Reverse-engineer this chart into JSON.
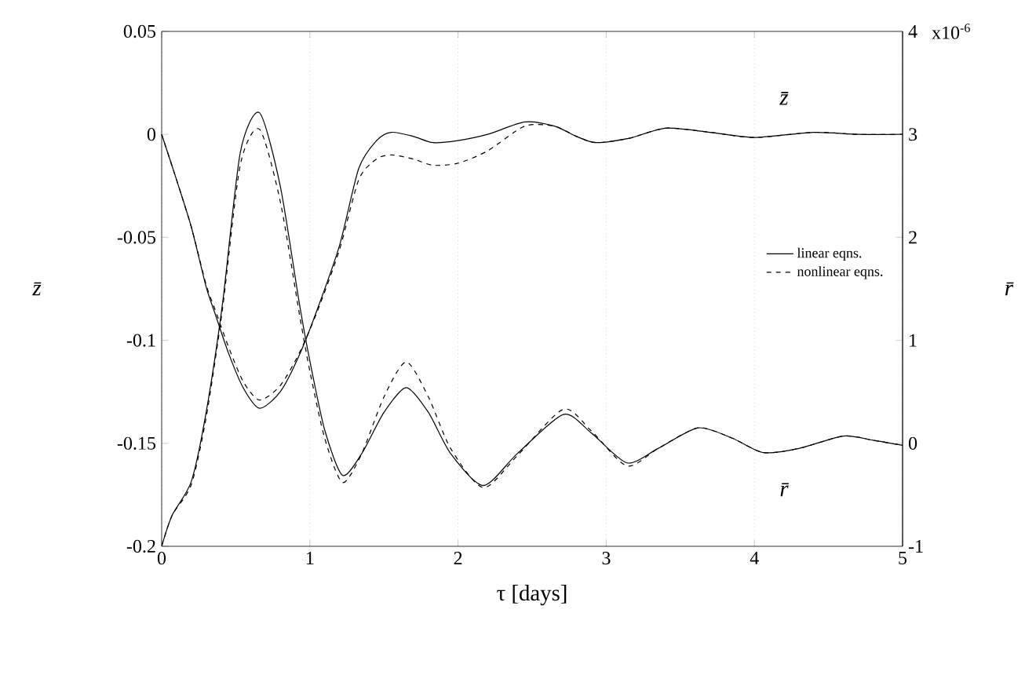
{
  "chart_data": {
    "type": "line",
    "xlabel": "τ [days]",
    "ylabel": "z̄",
    "y2label": "r̄",
    "xlim": [
      0,
      5
    ],
    "xticks": [
      0,
      1,
      2,
      3,
      4,
      5
    ],
    "ylim": [
      -0.2,
      0.05
    ],
    "yticks": [
      -0.2,
      -0.15,
      -0.1,
      -0.05,
      0,
      0.05
    ],
    "y2lim": [
      -1,
      4
    ],
    "y2ticks": [
      -1,
      0,
      1,
      2,
      3,
      4
    ],
    "legend": "right",
    "grid": "x",
    "marker": "none",
    "annotations": [
      "z̄",
      "r̄",
      "x10$^{-6}$"
    ],
    "series": [
      {
        "name": "linear eqns.",
        "color": "#000000",
        "line_style": "solid",
        "x": [
          0,
          0.1,
          0.2,
          0.3,
          0.36,
          0.45,
          0.55,
          0.66,
          0.8,
          0.93,
          1.05,
          1.2,
          1.33,
          1.45,
          1.55,
          1.7,
          1.83,
          2.0,
          2.2,
          2.45,
          2.65,
          2.8,
          2.93,
          3.15,
          3.4,
          3.7,
          4.0,
          4.4,
          4.7,
          5
        ],
        "values": [
          0,
          -0.022,
          -0.045,
          -0.074,
          -0.087,
          -0.106,
          -0.123,
          -0.133,
          -0.125,
          -0.107,
          -0.085,
          -0.054,
          -0.0165,
          -0.003,
          0.001,
          -0.001,
          -0.004,
          -0.003,
          0.0,
          0.006,
          0.004,
          -0.001,
          -0.004,
          -0.002,
          0.003,
          0.001,
          -0.0015,
          0.001,
          0.0,
          0.0
        ]
      },
      {
        "name": "nonlinear eqns.",
        "color": "#000000",
        "line_style": "dashed",
        "x": [
          0,
          0.1,
          0.2,
          0.3,
          0.36,
          0.45,
          0.55,
          0.66,
          0.8,
          0.93,
          1.05,
          1.2,
          1.33,
          1.45,
          1.55,
          1.7,
          1.83,
          2.0,
          2.2,
          2.45,
          2.65,
          2.8,
          2.93,
          3.15,
          3.4,
          3.7,
          4.0,
          4.4,
          4.7,
          5
        ],
        "values": [
          0,
          -0.022,
          -0.045,
          -0.073,
          -0.085,
          -0.103,
          -0.12,
          -0.129,
          -0.122,
          -0.106,
          -0.086,
          -0.056,
          -0.022,
          -0.012,
          -0.01,
          -0.012,
          -0.015,
          -0.014,
          -0.008,
          0.004,
          0.004,
          -0.001,
          -0.004,
          -0.002,
          0.003,
          0.001,
          -0.0015,
          0.001,
          0.0,
          0.0
        ]
      },
      {
        "color": "#000000",
        "line_style": "solid",
        "axis": "y2",
        "x": [
          0,
          0.07,
          0.2,
          0.3,
          0.41,
          0.53,
          0.66,
          0.8,
          0.93,
          1.0,
          1.1,
          1.22,
          1.35,
          1.5,
          1.65,
          1.8,
          1.95,
          2.17,
          2.4,
          2.71,
          2.9,
          3.14,
          3.35,
          3.62,
          3.85,
          4.06,
          4.3,
          4.6,
          4.8,
          5
        ],
        "values": [
          -1,
          -0.7,
          -0.37,
          0.3,
          1.35,
          2.82,
          3.21,
          2.5,
          1.35,
          0.8,
          0.13,
          -0.31,
          -0.1,
          0.3,
          0.54,
          0.3,
          -0.1,
          -0.41,
          -0.1,
          0.28,
          0.1,
          -0.19,
          -0.05,
          0.15,
          0.05,
          -0.09,
          -0.05,
          0.07,
          0.03,
          -0.02
        ]
      },
      {
        "color": "#000000",
        "line_style": "dashed",
        "axis": "y2",
        "x": [
          0,
          0.07,
          0.2,
          0.3,
          0.41,
          0.53,
          0.66,
          0.8,
          0.93,
          1.0,
          1.1,
          1.22,
          1.35,
          1.5,
          1.65,
          1.8,
          1.95,
          2.17,
          2.4,
          2.71,
          2.9,
          3.14,
          3.35,
          3.62,
          3.85,
          4.06,
          4.3,
          4.6,
          4.8,
          5
        ],
        "values": [
          -1,
          -0.7,
          -0.4,
          0.25,
          1.3,
          2.7,
          3.05,
          2.35,
          1.25,
          0.7,
          0.05,
          -0.38,
          -0.1,
          0.45,
          0.79,
          0.45,
          -0.05,
          -0.43,
          -0.12,
          0.33,
          0.12,
          -0.22,
          -0.05,
          0.15,
          0.05,
          -0.09,
          -0.05,
          0.07,
          0.03,
          -0.02
        ]
      }
    ]
  }
}
